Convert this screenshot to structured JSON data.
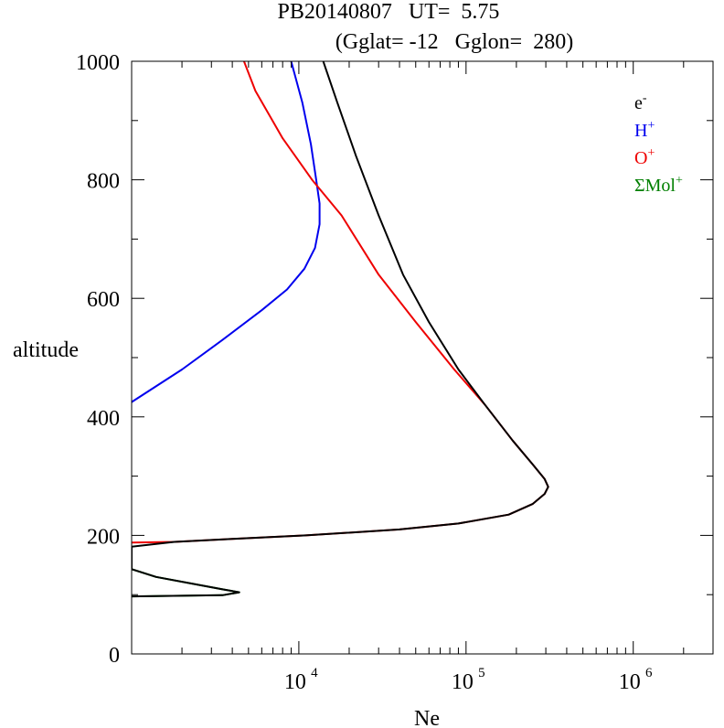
{
  "title": {
    "line1": "PB20140807   UT=  5.75",
    "line2": "(Gglat= -12   Gglon=  280)"
  },
  "chart_data": {
    "type": "line",
    "xlabel": "Ne",
    "ylabel": "altitude",
    "xscale": "log",
    "xlim": [
      1000,
      3000000
    ],
    "ylim": [
      0,
      1000
    ],
    "y_ticks": [
      0,
      200,
      400,
      600,
      800,
      1000
    ],
    "x_ticks": [
      {
        "value": 10000,
        "base": "10",
        "exp": "4"
      },
      {
        "value": 100000,
        "base": "10",
        "exp": "5"
      },
      {
        "value": 1000000,
        "base": "10",
        "exp": "6"
      }
    ],
    "grid": false,
    "legend_position": "top-right",
    "series": [
      {
        "name": "e-",
        "legend_base": "e",
        "legend_sup": "-",
        "color": "#000000",
        "points": [
          [
            1000,
            97
          ],
          [
            3500,
            99
          ],
          [
            4400,
            104
          ],
          [
            3500,
            109
          ],
          [
            1400,
            130
          ],
          [
            1000,
            143
          ],
          [
            1000,
            181
          ],
          [
            1800,
            189
          ],
          [
            4000,
            194
          ],
          [
            11000,
            200
          ],
          [
            40000,
            210
          ],
          [
            90000,
            220
          ],
          [
            180000,
            235
          ],
          [
            250000,
            253
          ],
          [
            295000,
            270
          ],
          [
            310000,
            282
          ],
          [
            295000,
            295
          ],
          [
            250000,
            320
          ],
          [
            190000,
            360
          ],
          [
            130000,
            420
          ],
          [
            90000,
            480
          ],
          [
            60000,
            560
          ],
          [
            42000,
            640
          ],
          [
            30000,
            740
          ],
          [
            22000,
            840
          ],
          [
            17000,
            930
          ],
          [
            14000,
            1000
          ]
        ]
      },
      {
        "name": "H+",
        "legend_base": "H",
        "legend_sup": "+",
        "color": "#0000ee",
        "points": [
          [
            1000,
            425
          ],
          [
            2000,
            480
          ],
          [
            3500,
            530
          ],
          [
            6000,
            580
          ],
          [
            8500,
            615
          ],
          [
            10800,
            650
          ],
          [
            12500,
            685
          ],
          [
            13300,
            725
          ],
          [
            13300,
            760
          ],
          [
            12700,
            800
          ],
          [
            11800,
            860
          ],
          [
            10500,
            930
          ],
          [
            9000,
            1000
          ]
        ]
      },
      {
        "name": "O+",
        "legend_base": "O",
        "legend_sup": "+",
        "color": "#ee0000",
        "points": [
          [
            1000,
            188
          ],
          [
            1800,
            189
          ],
          [
            4000,
            194
          ],
          [
            11000,
            200
          ],
          [
            40000,
            210
          ],
          [
            90000,
            220
          ],
          [
            180000,
            235
          ],
          [
            250000,
            253
          ],
          [
            295000,
            270
          ],
          [
            310000,
            282
          ],
          [
            295000,
            295
          ],
          [
            250000,
            320
          ],
          [
            190000,
            360
          ],
          [
            130000,
            420
          ],
          [
            85000,
            480
          ],
          [
            50000,
            560
          ],
          [
            30000,
            640
          ],
          [
            18000,
            740
          ],
          [
            12000,
            800
          ],
          [
            8000,
            870
          ],
          [
            5500,
            950
          ],
          [
            4700,
            1000
          ]
        ]
      },
      {
        "name": "ΣMol+",
        "legend_base": "ΣMol",
        "legend_sup": "+",
        "color": "#007f00",
        "points": [
          [
            1000,
            97
          ],
          [
            3500,
            99
          ],
          [
            4400,
            104
          ],
          [
            3500,
            109
          ],
          [
            1400,
            130
          ],
          [
            1000,
            143
          ]
        ]
      }
    ]
  }
}
